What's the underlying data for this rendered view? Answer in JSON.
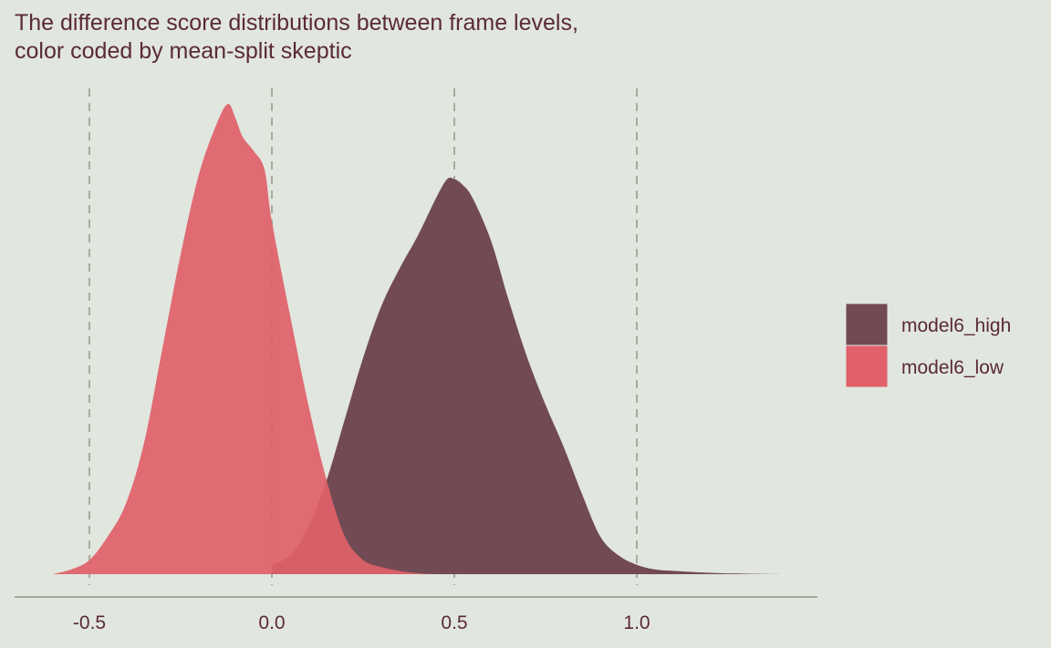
{
  "title_line1": "The difference score distributions between frame levels,",
  "title_line2": "color coded by mean-split skeptic",
  "chart_data": {
    "type": "area",
    "title": "The difference score distributions between frame levels, color coded by mean-split skeptic",
    "xlabel": "",
    "ylabel": "",
    "xlim": [
      -0.7,
      1.5
    ],
    "ylim": [
      0,
      1
    ],
    "x_ticks": [
      -0.5,
      0.0,
      0.5,
      1.0
    ],
    "x_tick_labels": [
      "-0.5",
      "0.0",
      "0.5",
      "1.0"
    ],
    "grid": "vertical dashed at x ticks",
    "legend_position": "right",
    "series": [
      {
        "name": "model6_high",
        "color": "#714a53",
        "x": [
          0.0,
          0.05,
          0.1,
          0.15,
          0.2,
          0.25,
          0.3,
          0.35,
          0.4,
          0.45,
          0.48,
          0.5,
          0.52,
          0.55,
          0.6,
          0.65,
          0.7,
          0.75,
          0.8,
          0.85,
          0.9,
          0.95,
          1.0,
          1.05,
          1.1,
          1.2,
          1.3,
          1.4
        ],
        "y": [
          0.02,
          0.04,
          0.1,
          0.2,
          0.33,
          0.46,
          0.57,
          0.65,
          0.72,
          0.8,
          0.84,
          0.84,
          0.83,
          0.8,
          0.71,
          0.58,
          0.46,
          0.36,
          0.27,
          0.17,
          0.08,
          0.04,
          0.02,
          0.01,
          0.007,
          0.003,
          0.001,
          0.0
        ]
      },
      {
        "name": "model6_low",
        "color": "#e06169",
        "x": [
          -0.6,
          -0.55,
          -0.5,
          -0.45,
          -0.4,
          -0.35,
          -0.3,
          -0.25,
          -0.2,
          -0.15,
          -0.12,
          -0.1,
          -0.08,
          -0.05,
          -0.02,
          0.0,
          0.05,
          0.1,
          0.15,
          0.2,
          0.25,
          0.3,
          0.35,
          0.4,
          0.45
        ],
        "y": [
          0.0,
          0.01,
          0.03,
          0.08,
          0.15,
          0.28,
          0.48,
          0.68,
          0.85,
          0.96,
          1.0,
          0.97,
          0.93,
          0.9,
          0.86,
          0.75,
          0.55,
          0.36,
          0.2,
          0.08,
          0.03,
          0.015,
          0.007,
          0.002,
          0.0
        ]
      }
    ]
  },
  "colors": {
    "background": "#e1e6df",
    "text": "#5a2a35",
    "grid": "#a9aa9d",
    "axis": "#a9aa9d"
  }
}
